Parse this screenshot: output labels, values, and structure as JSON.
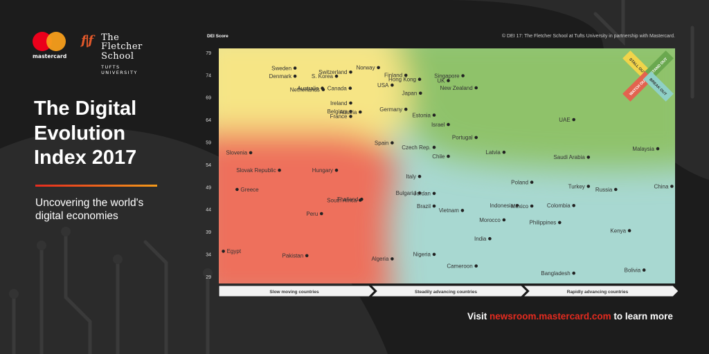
{
  "brand": {
    "mastercard_wordmark": "mastercard",
    "fletcher_line1": "The Fletcher",
    "fletcher_line2": "School",
    "fletcher_line3": "TUFTS UNIVERSITY"
  },
  "title_line1": "The Digital",
  "title_line2": "Evolution",
  "title_line3": "Index 2017",
  "subtitle": "Uncovering the world's digital economies",
  "footer": {
    "prefix": "Visit ",
    "url": "newsroom.mastercard.com",
    "suffix": " to learn more"
  },
  "chart_data": {
    "type": "scatter",
    "ylabel": "DEI Score",
    "copyright": "© DEI 17: The Fletcher School at Tufts University in partnership with Mastercard.",
    "ylim": [
      27.5,
      80
    ],
    "yticks": [
      29,
      34,
      39,
      44,
      49,
      54,
      59,
      64,
      69,
      74,
      79
    ],
    "x_categories": [
      "Slow moving countries",
      "Steadily advancing countries",
      "Rapidly advancing countries"
    ],
    "quadrants": [
      "STALL OUT",
      "STAND OUT",
      "WATCH OUT",
      "BREAK OUT"
    ],
    "colors": {
      "stand_out": "#8fc26a",
      "stall_out": "#f6e585",
      "watch_out": "#ee6f5b",
      "break_out": "#a8d8d1"
    },
    "points": [
      {
        "label": "Sweden",
        "x": 0.167,
        "y": 75.6
      },
      {
        "label": "Denmark",
        "x": 0.167,
        "y": 73.8
      },
      {
        "label": "Norway",
        "x": 0.35,
        "y": 75.7
      },
      {
        "label": "Switzerland",
        "x": 0.289,
        "y": 74.7
      },
      {
        "label": "S. Korea",
        "x": 0.258,
        "y": 73.8
      },
      {
        "label": "Finland",
        "x": 0.41,
        "y": 74.0
      },
      {
        "label": "Hong Kong",
        "x": 0.44,
        "y": 73.1
      },
      {
        "label": "Singapore",
        "x": 0.535,
        "y": 73.9
      },
      {
        "label": "USA",
        "x": 0.38,
        "y": 71.8
      },
      {
        "label": "UK",
        "x": 0.503,
        "y": 72.8
      },
      {
        "label": "Australia",
        "x": 0.227,
        "y": 71.1
      },
      {
        "label": "Canada",
        "x": 0.288,
        "y": 71.1
      },
      {
        "label": "New Zealand",
        "x": 0.564,
        "y": 71.2
      },
      {
        "label": "Netherlands",
        "x": 0.229,
        "y": 70.8
      },
      {
        "label": "Japan",
        "x": 0.442,
        "y": 70.0
      },
      {
        "label": "Ireland",
        "x": 0.289,
        "y": 67.8
      },
      {
        "label": "Germany",
        "x": 0.41,
        "y": 66.4
      },
      {
        "label": "Belgium",
        "x": 0.289,
        "y": 65.9
      },
      {
        "label": "Austria",
        "x": 0.31,
        "y": 65.8
      },
      {
        "label": "Estonia",
        "x": 0.472,
        "y": 65.1
      },
      {
        "label": "France",
        "x": 0.289,
        "y": 64.8
      },
      {
        "label": "UAE",
        "x": 0.778,
        "y": 64.1
      },
      {
        "label": "Israel",
        "x": 0.503,
        "y": 63.0
      },
      {
        "label": "Portugal",
        "x": 0.564,
        "y": 60.1
      },
      {
        "label": "Spain",
        "x": 0.38,
        "y": 58.9
      },
      {
        "label": "Czech Rep.",
        "x": 0.472,
        "y": 57.9
      },
      {
        "label": "Slovenia",
        "x": 0.07,
        "y": 56.7
      },
      {
        "label": "Latvia",
        "x": 0.625,
        "y": 56.8
      },
      {
        "label": "Malaysia",
        "x": 0.962,
        "y": 57.6
      },
      {
        "label": "Chile",
        "x": 0.503,
        "y": 55.9
      },
      {
        "label": "Saudi Arabia",
        "x": 0.81,
        "y": 55.7
      },
      {
        "label": "Slovak Republic",
        "x": 0.133,
        "y": 52.8
      },
      {
        "label": "Hungary",
        "x": 0.258,
        "y": 52.8
      },
      {
        "label": "Italy",
        "x": 0.44,
        "y": 51.4
      },
      {
        "label": "Poland",
        "x": 0.686,
        "y": 50.1
      },
      {
        "label": "Turkey",
        "x": 0.81,
        "y": 49.2
      },
      {
        "label": "China",
        "x": 0.993,
        "y": 49.2
      },
      {
        "label": "Russia",
        "x": 0.87,
        "y": 48.5
      },
      {
        "label": "Greece",
        "x": 0.04,
        "y": 48.5
      },
      {
        "label": "Bulgaria",
        "x": 0.44,
        "y": 47.7
      },
      {
        "label": "Jordan",
        "x": 0.472,
        "y": 47.6
      },
      {
        "label": "South Africa",
        "x": 0.31,
        "y": 46.1
      },
      {
        "label": "Thailand",
        "x": 0.313,
        "y": 46.3
      },
      {
        "label": "Brazil",
        "x": 0.472,
        "y": 44.8
      },
      {
        "label": "Indonesia",
        "x": 0.654,
        "y": 44.9
      },
      {
        "label": "Mexico",
        "x": 0.686,
        "y": 44.8
      },
      {
        "label": "Colombia",
        "x": 0.778,
        "y": 44.9
      },
      {
        "label": "Vietnam",
        "x": 0.534,
        "y": 43.8
      },
      {
        "label": "Peru",
        "x": 0.225,
        "y": 43.1
      },
      {
        "label": "Morocco",
        "x": 0.625,
        "y": 41.7
      },
      {
        "label": "Philippines",
        "x": 0.747,
        "y": 41.1
      },
      {
        "label": "Kenya",
        "x": 0.9,
        "y": 39.3
      },
      {
        "label": "India",
        "x": 0.594,
        "y": 37.5
      },
      {
        "label": "Egypt",
        "x": 0.01,
        "y": 34.7
      },
      {
        "label": "Pakistan",
        "x": 0.193,
        "y": 33.7
      },
      {
        "label": "Nigeria",
        "x": 0.472,
        "y": 34.0
      },
      {
        "label": "Algeria",
        "x": 0.38,
        "y": 33.0
      },
      {
        "label": "Cameroon",
        "x": 0.564,
        "y": 31.4
      },
      {
        "label": "Bolivia",
        "x": 0.932,
        "y": 30.5
      },
      {
        "label": "Bangladesh",
        "x": 0.778,
        "y": 29.8
      }
    ]
  }
}
